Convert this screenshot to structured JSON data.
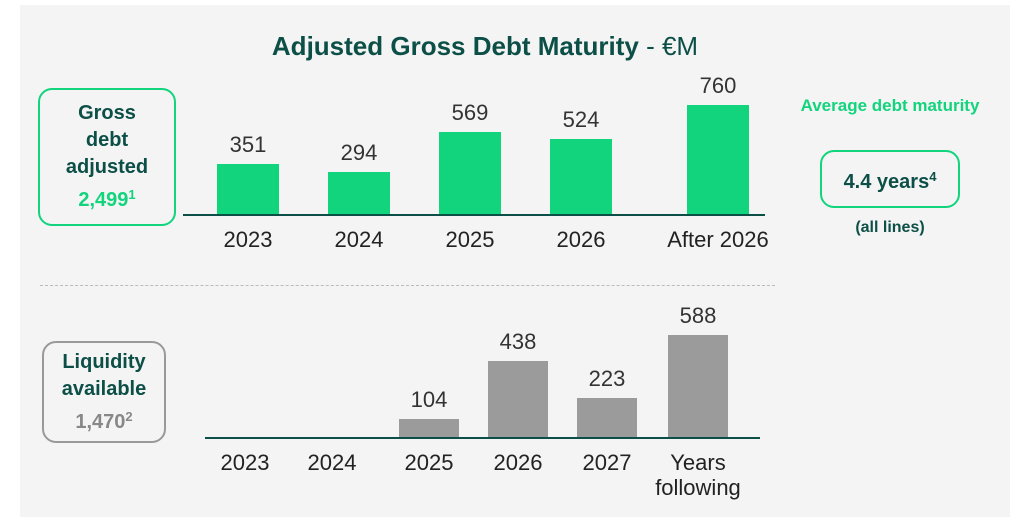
{
  "title": "Adjusted Gross Debt Maturity",
  "title_unit": "- €M",
  "gross_debt": {
    "label": "Gross debt adjusted",
    "value": "2,499",
    "note": "1"
  },
  "liquidity": {
    "label": "Liquidity available",
    "value": "1,470",
    "note": "2"
  },
  "maturity": {
    "label": "Average debt maturity",
    "value": "4.4 years",
    "note": "4",
    "caption": "(all lines)"
  },
  "chart_data": [
    {
      "type": "bar",
      "categories": [
        "2023",
        "2024",
        "2025",
        "2026",
        "After 2026"
      ],
      "values": [
        351,
        294,
        569,
        524,
        760
      ],
      "color": "#12d47d"
    },
    {
      "type": "bar",
      "categories": [
        "2023",
        "2024",
        "2025",
        "2026",
        "2027",
        "Years following"
      ],
      "values": [
        null,
        null,
        104,
        438,
        223,
        588
      ],
      "color": "#9b9b9b"
    }
  ]
}
